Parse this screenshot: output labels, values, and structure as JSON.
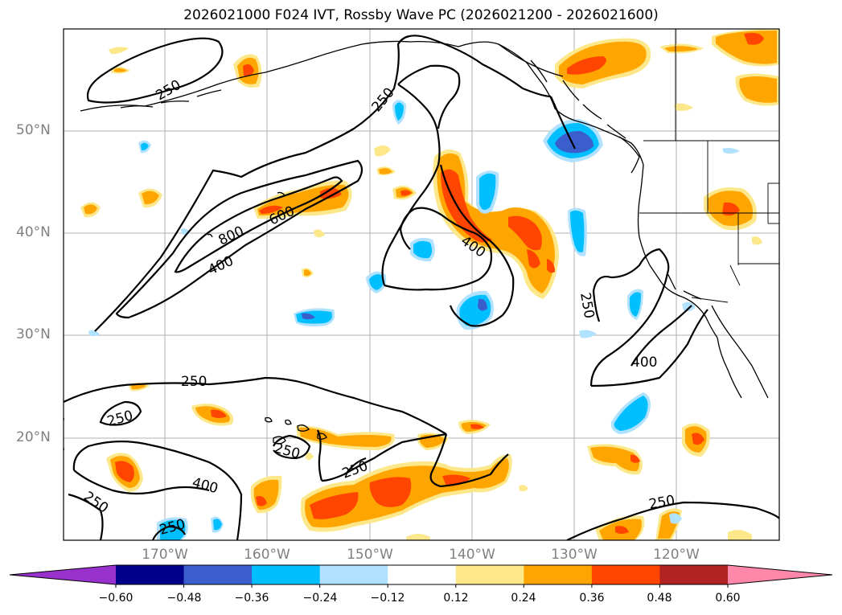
{
  "title": "2026021000 F024 IVT, Rossby Wave PC (2026021200 - 2026021600)",
  "lat_labels": [
    "50°N",
    "40°N",
    "30°N",
    "20°N"
  ],
  "lon_labels": [
    "170°W",
    "160°W",
    "150°W",
    "140°W",
    "130°W",
    "120°W"
  ],
  "contour_labels": [
    "250",
    "250",
    "600",
    "800",
    "400",
    "400",
    "250",
    "400",
    "250",
    "250",
    "250",
    "400",
    "250",
    "250",
    "250",
    "250"
  ],
  "colorbar": {
    "ticks": [
      "−0.60",
      "−0.48",
      "−0.36",
      "−0.24",
      "−0.12",
      "0.12",
      "0.24",
      "0.36",
      "0.48",
      "0.60"
    ],
    "colors": [
      "#9932cc",
      "#00008b",
      "#3a5fcd",
      "#00bfff",
      "#b0e2ff",
      "#ffffff",
      "#fce88a",
      "#ffa500",
      "#ff4500",
      "#b22222",
      "#ff88aa"
    ]
  },
  "colors": {
    "orange": "#ffa500",
    "red_orange": "#ff4500",
    "light_yellow": "#fce88a",
    "light_blue": "#b0e2ff",
    "deep_sky_blue": "#00bfff",
    "royal_blue": "#3a5fcd"
  }
}
